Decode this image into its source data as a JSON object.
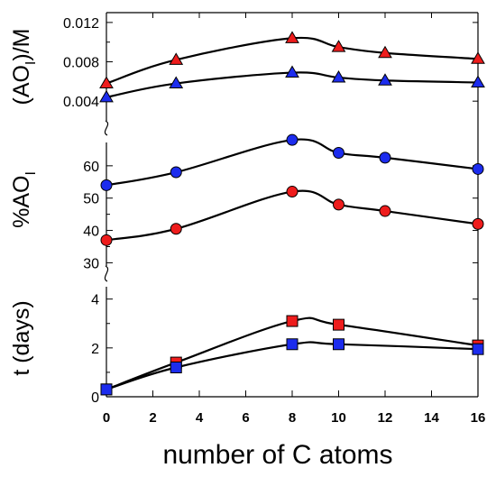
{
  "chart_data": {
    "type": "line",
    "x": [
      0,
      3,
      8,
      10,
      12,
      16
    ],
    "xlabel": "number of C atoms",
    "xticks": [
      "0",
      "2",
      "4",
      "6",
      "8",
      "10",
      "12",
      "14",
      "16"
    ],
    "xlim": [
      0,
      16
    ],
    "panels": [
      {
        "ylabel": "(AO",
        "ylabel_sub": "I",
        "ylabel_tail": ")/M",
        "ylim": [
          0.002,
          0.013
        ],
        "yticks": [
          "0.004",
          "0.008",
          "0.012"
        ],
        "marker": "triangle",
        "series": [
          {
            "color": "#ee1c1c",
            "values": [
              0.0058,
              0.0082,
              0.0104,
              0.0095,
              0.0089,
              0.0083
            ]
          },
          {
            "color": "#1c2cee",
            "values": [
              0.0044,
              0.0058,
              0.0069,
              0.0064,
              0.0061,
              0.0059
            ]
          }
        ]
      },
      {
        "ylabel": "%AO",
        "ylabel_sub": "I",
        "ylabel_tail": "",
        "ylim": [
          29,
          70
        ],
        "yticks": [
          "30",
          "40",
          "50",
          "60"
        ],
        "marker": "circle",
        "series": [
          {
            "color": "#1c2cee",
            "values": [
              54,
              58,
              68,
              64,
              62.5,
              59
            ]
          },
          {
            "color": "#ee1c1c",
            "values": [
              37,
              40.5,
              52,
              48,
              46,
              42
            ]
          }
        ]
      },
      {
        "ylabel": "t (days)",
        "ylabel_sub": "",
        "ylabel_tail": "",
        "ylim": [
          0,
          4.8
        ],
        "yticks": [
          "0",
          "2",
          "4"
        ],
        "marker": "square",
        "series": [
          {
            "color": "#ee1c1c",
            "values": [
              0.3,
              1.4,
              3.1,
              2.95,
              null,
              2.1
            ]
          },
          {
            "color": "#1c2cee",
            "values": [
              0.3,
              1.2,
              2.15,
              2.15,
              null,
              1.95
            ]
          }
        ]
      }
    ],
    "grid": false
  }
}
